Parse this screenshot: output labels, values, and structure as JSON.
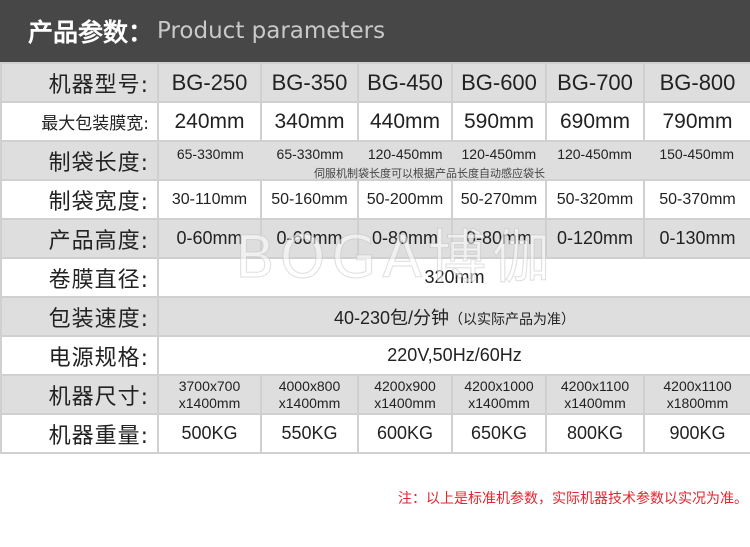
{
  "header": {
    "title_cn": "产品参数：",
    "title_en": "Product parameters"
  },
  "models": [
    "BG-250",
    "BG-350",
    "BG-450",
    "BG-600",
    "BG-700",
    "BG-800"
  ],
  "rows": {
    "model": {
      "label": "机器型号:"
    },
    "film_width": {
      "label": "最大包装膜宽:",
      "values": [
        "240mm",
        "340mm",
        "440mm",
        "590mm",
        "690mm",
        "790mm"
      ]
    },
    "bag_length": {
      "label": "制袋长度:",
      "values": [
        "65-330mm",
        "65-330mm",
        "120-450mm",
        "120-450mm",
        "120-450mm",
        "150-450mm"
      ],
      "note": "伺服机制袋长度可以根据产品长度自动感应袋长"
    },
    "bag_width": {
      "label": "制袋宽度:",
      "values": [
        "30-110mm",
        "50-160mm",
        "50-200mm",
        "50-270mm",
        "50-320mm",
        "50-370mm"
      ]
    },
    "product_height": {
      "label": "产品高度:",
      "values": [
        "0-60mm",
        "0-60mm",
        "0-80mm",
        "0-80mm",
        "0-120mm",
        "0-130mm"
      ]
    },
    "roll_diameter": {
      "label": "卷膜直径:",
      "value": "320mm"
    },
    "speed": {
      "label": "包装速度:",
      "value": "40-230包/分钟",
      "note": "（以实际产品为准）"
    },
    "power": {
      "label": "电源规格:",
      "value": "220V,50Hz/60Hz"
    },
    "size": {
      "label": "机器尺寸:",
      "values": [
        [
          "3700x700",
          "x1400mm"
        ],
        [
          "4000x800",
          "x1400mm"
        ],
        [
          "4200x900",
          "x1400mm"
        ],
        [
          "4200x1000",
          "x1400mm"
        ],
        [
          "4200x1100",
          "x1400mm"
        ],
        [
          "4200x1100",
          "x1800mm"
        ]
      ]
    },
    "weight": {
      "label": "机器重量:",
      "values": [
        "500KG",
        "550KG",
        "600KG",
        "650KG",
        "800KG",
        "900KG"
      ]
    }
  },
  "watermark": "BOGA博伽",
  "footnote": "注：以上是标准机参数，实际机器技术参数以实况为准。",
  "colors": {
    "header_bg": "#474747",
    "row_gray": "#dedede",
    "note_red": "#e0262f"
  }
}
